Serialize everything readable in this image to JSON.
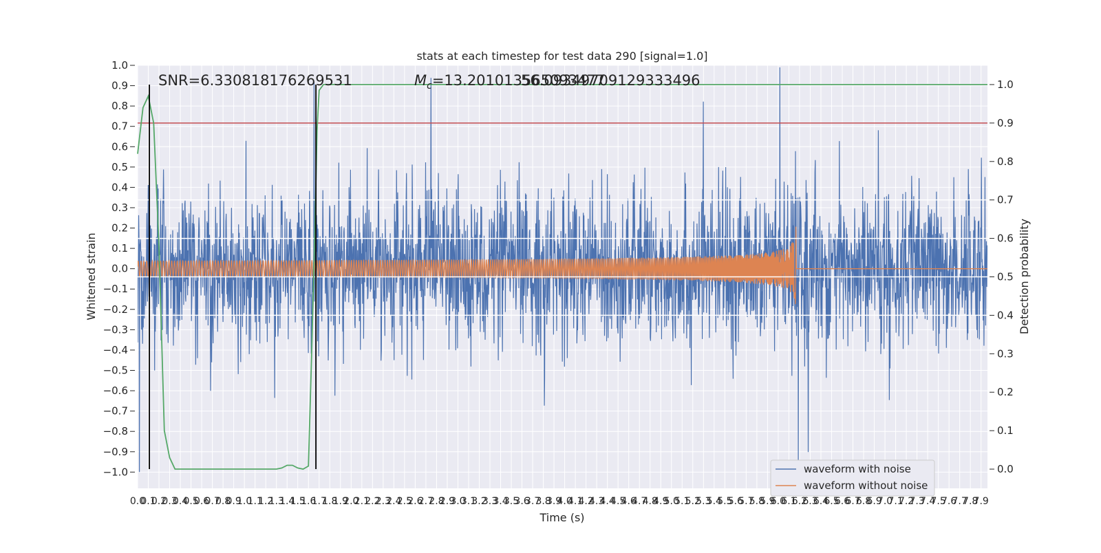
{
  "chart_data": {
    "type": "line",
    "title": "stats at each timestep for test data 290 [signal=1.0]",
    "xlabel": "Time (s)",
    "ylabel": "Whitened strain",
    "y2label": "Detection probability",
    "xlim": [
      0.0,
      7.96
    ],
    "ylim": [
      -1.08,
      1.0
    ],
    "y2lim": [
      -0.05,
      1.05
    ],
    "grid": true,
    "legend_position": "lower-right",
    "xticks": [
      0.0,
      0.1,
      0.2,
      0.3,
      0.4,
      0.5,
      0.6,
      0.7,
      0.8,
      0.9,
      1.0,
      1.1,
      1.2,
      1.3,
      1.4,
      1.5,
      1.6,
      1.7,
      1.8,
      1.9,
      2.0,
      2.1,
      2.2,
      2.3,
      2.4,
      2.5,
      2.6,
      2.7,
      2.8,
      2.9,
      3.0,
      3.1,
      3.2,
      3.3,
      3.4,
      3.5,
      3.6,
      3.7,
      3.8,
      3.9,
      4.0,
      4.1,
      4.2,
      4.3,
      4.4,
      4.5,
      4.6,
      4.7,
      4.8,
      4.9,
      5.0,
      5.1,
      5.2,
      5.3,
      5.4,
      5.5,
      5.6,
      5.7,
      5.8,
      5.9,
      6.0,
      6.1,
      6.2,
      6.3,
      6.4,
      6.5,
      6.6,
      6.7,
      6.8,
      6.9,
      7.0,
      7.1,
      7.2,
      7.3,
      7.4,
      7.5,
      7.6,
      7.7,
      7.8,
      7.9
    ],
    "xtick_labels": [
      "0.0",
      "0.1",
      "0.2",
      "0.3",
      "0.4",
      "0.5",
      "0.6",
      "0.7",
      "0.8",
      "0.9",
      "1.0",
      "1.1",
      "1.2",
      "1.3",
      "1.4",
      "1.5",
      "1.6",
      "1.7",
      "1.8",
      "1.9",
      "2.0",
      "2.1",
      "2.2",
      "2.3",
      "2.4",
      "2.5",
      "2.6",
      "2.7",
      "2.8",
      "2.9",
      "3.0",
      "3.1",
      "3.2",
      "3.3",
      "3.4",
      "3.5",
      "3.6",
      "3.7",
      "3.8",
      "3.9",
      "4.0",
      "4.1",
      "4.2",
      "4.3",
      "4.4",
      "4.5",
      "4.6",
      "4.7",
      "4.8",
      "4.9",
      "5.0",
      "5.1",
      "5.2",
      "5.3",
      "5.4",
      "5.5",
      "5.6",
      "5.7",
      "5.8",
      "5.9",
      "6.0",
      "6.1",
      "6.2",
      "6.3",
      "6.4",
      "6.5",
      "6.6",
      "6.7",
      "6.8",
      "6.9",
      "7.0",
      "7.1",
      "7.2",
      "7.3",
      "7.4",
      "7.5",
      "7.6",
      "7.7",
      "7.8",
      "7.9"
    ],
    "yticks": [
      1.0,
      0.9,
      0.8,
      0.7,
      0.6,
      0.5,
      0.4,
      0.3,
      0.2,
      0.1,
      0.0,
      -0.1,
      -0.2,
      -0.3,
      -0.4,
      -0.5,
      -0.6,
      -0.7,
      -0.8,
      -0.9,
      -1.0
    ],
    "ytick_labels": [
      "1.0",
      "0.9",
      "0.8",
      "0.7",
      "0.6",
      "0.5",
      "0.4",
      "0.3",
      "0.2",
      "0.1",
      "0.0",
      "−0.1",
      "−0.2",
      "−0.3",
      "−0.4",
      "−0.5",
      "−0.6",
      "−0.7",
      "−0.8",
      "−0.9",
      "−1.0"
    ],
    "y2ticks": [
      1.0,
      0.9,
      0.8,
      0.7,
      0.6,
      0.5,
      0.4,
      0.3,
      0.2,
      0.1,
      0.0
    ],
    "y2tick_labels": [
      "1.0",
      "0.9",
      "0.8",
      "0.7",
      "0.6",
      "0.5",
      "0.4",
      "0.3",
      "0.2",
      "0.1",
      "0.0"
    ],
    "annotations": [
      {
        "text": "SNR=6.330818176269531"
      },
      {
        "text_prefix": "M",
        "text_sub": "c",
        "text_rest": "=13.201013565093477"
      },
      {
        "text": "56.09349709129333496"
      }
    ],
    "series": [
      {
        "name": "waveform with noise",
        "axis": "left",
        "color": "#4c72b0",
        "note": "dense whitened noise, amplitude about ±0.35 with spikes up to ±1.0 over 0.0–7.96 s"
      },
      {
        "name": "waveform without noise",
        "axis": "left",
        "color": "#dd8452",
        "note": "chirp: amplitude grows from about 0.01 to 0.22 and frequency rises until merger at about 6.17 s, then zero"
      },
      {
        "name": "",
        "axis": "right",
        "color": "#55a868",
        "x": [
          0.0,
          0.05,
          0.1,
          0.15,
          0.2,
          0.25,
          0.3,
          0.35,
          0.4,
          0.6,
          0.8,
          1.0,
          1.2,
          1.3,
          1.35,
          1.4,
          1.45,
          1.5,
          1.55,
          1.6,
          1.63,
          1.66,
          1.68,
          1.7,
          1.74,
          2.0,
          3.0,
          4.0,
          5.0,
          6.0,
          7.0,
          7.96
        ],
        "values": [
          0.82,
          0.94,
          0.97,
          0.9,
          0.58,
          0.1,
          0.03,
          0.0,
          0.0,
          0.0,
          0.0,
          0.0,
          0.0,
          0.0,
          0.003,
          0.01,
          0.01,
          0.003,
          0.0,
          0.008,
          0.3,
          0.62,
          0.88,
          0.985,
          1.0,
          1.0,
          1.0,
          1.0,
          1.0,
          1.0,
          1.0,
          1.0
        ]
      }
    ],
    "hlines": [
      {
        "axis": "right",
        "value": 0.9,
        "color": "#c44e52"
      },
      {
        "axis": "right",
        "value": 0.7,
        "color": "#ffffff"
      },
      {
        "axis": "right",
        "value": 0.6,
        "color": "#ffffff"
      },
      {
        "axis": "right",
        "value": 0.5,
        "color": "#ffffff"
      },
      {
        "axis": "right",
        "value": 0.4,
        "color": "#ffffff"
      }
    ],
    "vlines": [
      {
        "value": 0.11,
        "color": "#000000"
      },
      {
        "value": 1.67,
        "color": "#000000"
      }
    ]
  }
}
